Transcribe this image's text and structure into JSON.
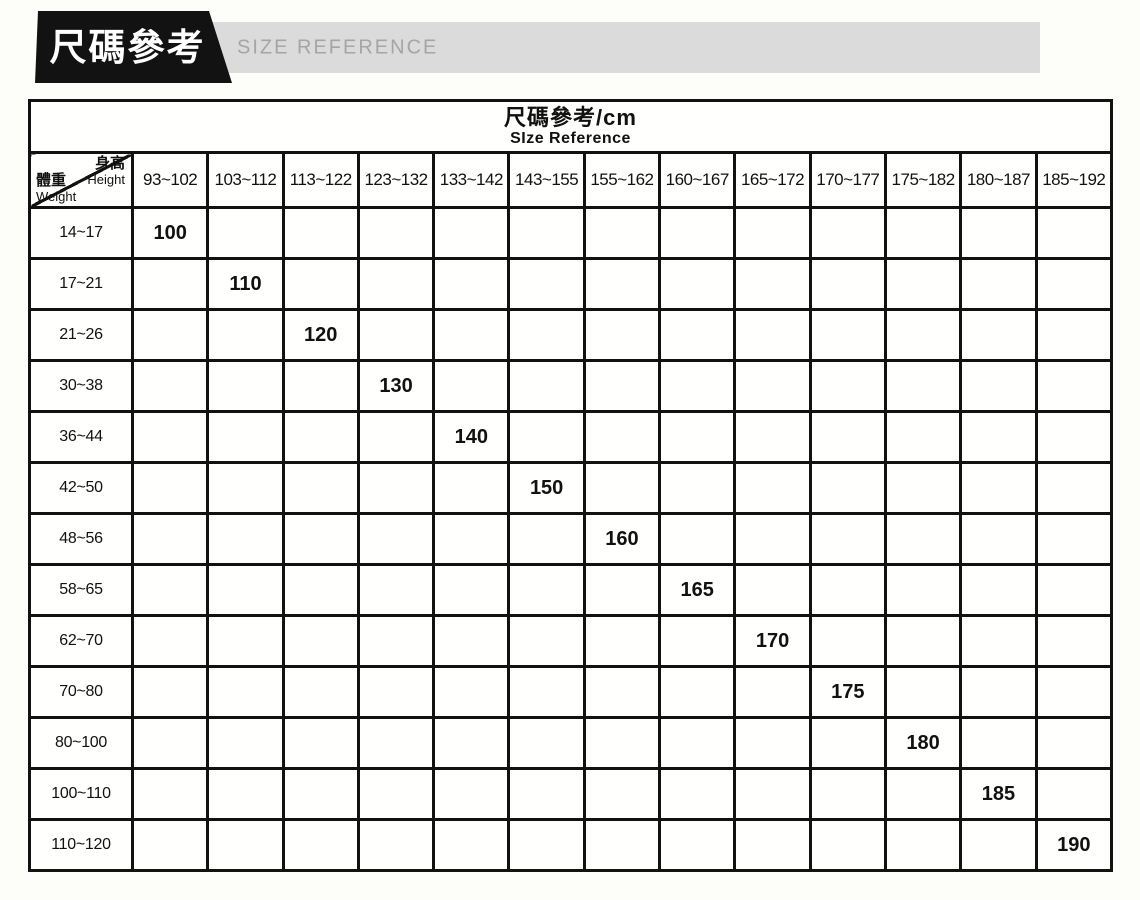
{
  "banner": {
    "title_zh": "尺碼參考",
    "title_en": "SIZE REFERENCE"
  },
  "table": {
    "title": "尺碼參考/cm",
    "subtitle": "SIze Reference",
    "corner": {
      "col_label_zh": "身高",
      "col_label_en": "Height",
      "row_label_zh": "體重",
      "row_label_en": "Weight"
    },
    "columns": [
      "93~102",
      "103~112",
      "113~122",
      "123~132",
      "133~142",
      "143~155",
      "155~162",
      "160~167",
      "165~172",
      "170~177",
      "175~182",
      "180~187",
      "185~192"
    ],
    "rows": [
      {
        "weight": "14~17",
        "size": "100",
        "size_col": 0
      },
      {
        "weight": "17~21",
        "size": "110",
        "size_col": 1
      },
      {
        "weight": "21~26",
        "size": "120",
        "size_col": 2
      },
      {
        "weight": "30~38",
        "size": "130",
        "size_col": 3
      },
      {
        "weight": "36~44",
        "size": "140",
        "size_col": 4
      },
      {
        "weight": "42~50",
        "size": "150",
        "size_col": 5
      },
      {
        "weight": "48~56",
        "size": "160",
        "size_col": 6
      },
      {
        "weight": "58~65",
        "size": "165",
        "size_col": 7
      },
      {
        "weight": "62~70",
        "size": "170",
        "size_col": 8
      },
      {
        "weight": "70~80",
        "size": "175",
        "size_col": 9
      },
      {
        "weight": "80~100",
        "size": "180",
        "size_col": 10
      },
      {
        "weight": "100~110",
        "size": "185",
        "size_col": 11
      },
      {
        "weight": "110~120",
        "size": "190",
        "size_col": 12
      }
    ]
  },
  "chart_data": {
    "type": "table",
    "title": "尺碼參考/cm",
    "subtitle": "SIze Reference",
    "column_axis": {
      "label_zh": "身高",
      "label_en": "Height",
      "unit": "cm"
    },
    "row_axis": {
      "label_zh": "體重",
      "label_en": "Weight"
    },
    "columns": [
      "93~102",
      "103~112",
      "113~122",
      "123~132",
      "133~142",
      "143~155",
      "155~162",
      "160~167",
      "165~172",
      "170~177",
      "175~182",
      "180~187",
      "185~192"
    ],
    "rows": [
      "14~17",
      "17~21",
      "21~26",
      "30~38",
      "36~44",
      "42~50",
      "48~56",
      "58~65",
      "62~70",
      "70~80",
      "80~100",
      "100~110",
      "110~120"
    ],
    "cells": [
      {
        "weight": "14~17",
        "height": "93~102",
        "size": "100"
      },
      {
        "weight": "17~21",
        "height": "103~112",
        "size": "110"
      },
      {
        "weight": "21~26",
        "height": "113~122",
        "size": "120"
      },
      {
        "weight": "30~38",
        "height": "123~132",
        "size": "130"
      },
      {
        "weight": "36~44",
        "height": "133~142",
        "size": "140"
      },
      {
        "weight": "42~50",
        "height": "143~155",
        "size": "150"
      },
      {
        "weight": "48~56",
        "height": "155~162",
        "size": "160"
      },
      {
        "weight": "58~65",
        "height": "160~167",
        "size": "165"
      },
      {
        "weight": "62~70",
        "height": "165~172",
        "size": "170"
      },
      {
        "weight": "70~80",
        "height": "170~177",
        "size": "175"
      },
      {
        "weight": "80~100",
        "height": "175~182",
        "size": "180"
      },
      {
        "weight": "100~110",
        "height": "180~187",
        "size": "185"
      },
      {
        "weight": "110~120",
        "height": "185~192",
        "size": "190"
      }
    ],
    "colors": {
      "border": "#121212",
      "banner_black": "#121212",
      "banner_gray": "#dbdbdb",
      "banner_en_text": "#a5a5a5"
    }
  }
}
